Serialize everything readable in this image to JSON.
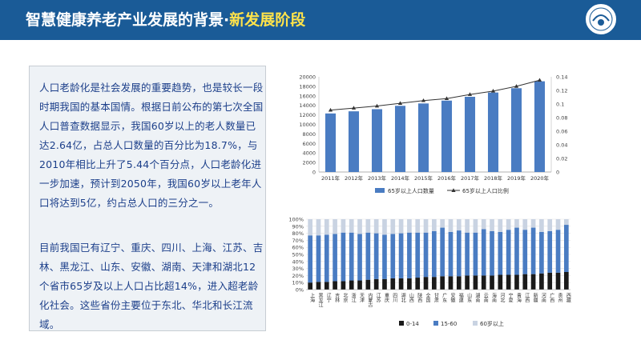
{
  "header": {
    "title_main": "智慧健康养老产业发展的背景·",
    "title_highlight": "新发展阶段"
  },
  "text_panel": {
    "paragraph1": "人口老龄化是社会发展的重要趋势，也是较长一段时期我国的基本国情。根据日前公布的第七次全国人口普查数据显示，我国60岁以上的老人数量已达2.64亿，占总人口数量的百分比为18.7%，与2010年相比上升了5.44个百分点，人口老龄化进一步加速，预计到2050年，我国60岁以上老年人口将达到5亿，约占总人口的三分之一。",
    "paragraph2": "目前我国已有辽宁、重庆、四川、上海、江苏、吉林、黑龙江、山东、安徽、湖南、天津和湖北12个省市65岁及以上人口占比超14%，进入超老龄化社会。这些省份主要位于东北、华北和长江流域。"
  },
  "colors": {
    "header_bg": "#1a5b97",
    "highlight": "#ffe34a",
    "text": "#1c3f8a",
    "bar": "#4a7cc2",
    "seg_child": "#1a1a1a",
    "seg_work": "#4a7cc2",
    "seg_old": "#c9d3e2"
  },
  "chart_data": [
    {
      "type": "bar",
      "categories": [
        "2011年",
        "2012年",
        "2013年",
        "2014年",
        "2015年",
        "2016年",
        "2017年",
        "2018年",
        "2019年",
        "2020年"
      ],
      "series": [
        {
          "name": "65岁以上人口数量",
          "type": "bar",
          "axis": "left",
          "values": [
            12300,
            12750,
            13200,
            13900,
            14400,
            15000,
            15800,
            16700,
            17600,
            19060
          ]
        },
        {
          "name": "65岁以上人口比例",
          "type": "line",
          "axis": "right",
          "values": [
            0.091,
            0.094,
            0.097,
            0.101,
            0.105,
            0.108,
            0.114,
            0.119,
            0.126,
            0.135
          ]
        }
      ],
      "ylim_left": [
        0,
        20000
      ],
      "yticks_left": [
        "0",
        "2000",
        "4000",
        "6000",
        "8000",
        "10000",
        "12000",
        "14000",
        "16000",
        "18000",
        "20000"
      ],
      "ylim_right": [
        0,
        0.14
      ],
      "yticks_right": [
        "0",
        "0.02",
        "0.04",
        "0.06",
        "0.08",
        "0.1",
        "0.12",
        "0.14"
      ],
      "legend_position": "bottom",
      "grid": false
    },
    {
      "type": "bar",
      "stacked": true,
      "categories": [
        "上海",
        "黑龙江",
        "辽宁",
        "吉林",
        "北京",
        "浙江",
        "天津",
        "内蒙古",
        "江苏",
        "重庆",
        "四川",
        "湖北",
        "山西",
        "陕西",
        "全国",
        "甘肃",
        "广东",
        "安徽",
        "福建",
        "山东",
        "湖南",
        "云南",
        "海南",
        "河北",
        "宁夏",
        "青海",
        "江西",
        "新疆",
        "河南",
        "广西",
        "贵州",
        "西藏"
      ],
      "series": [
        {
          "name": "0-14",
          "values": [
            10,
            11,
            11,
            12,
            12,
            13,
            13,
            14,
            15,
            15,
            16,
            16,
            16,
            17,
            18,
            18,
            19,
            19,
            19,
            20,
            20,
            20,
            20,
            21,
            21,
            21,
            22,
            22,
            23,
            24,
            24,
            25
          ]
        },
        {
          "name": "15-60",
          "values": [
            67,
            66,
            67,
            67,
            69,
            68,
            66,
            67,
            65,
            63,
            63,
            64,
            65,
            64,
            63,
            65,
            69,
            63,
            65,
            61,
            61,
            66,
            63,
            61,
            64,
            67,
            63,
            66,
            59,
            59,
            61,
            67
          ]
        },
        {
          "name": "60岁以上",
          "values": [
            23,
            23,
            22,
            21,
            19,
            19,
            21,
            19,
            20,
            22,
            21,
            20,
            19,
            19,
            19,
            17,
            12,
            18,
            16,
            19,
            19,
            14,
            17,
            18,
            15,
            12,
            15,
            12,
            18,
            17,
            15,
            8
          ]
        }
      ],
      "ylim": [
        0,
        100
      ],
      "yticks": [
        "0%",
        "10%",
        "20%",
        "30%",
        "40%",
        "50%",
        "60%",
        "70%",
        "80%",
        "90%",
        "100%"
      ],
      "legend_position": "bottom",
      "grid": true
    }
  ]
}
